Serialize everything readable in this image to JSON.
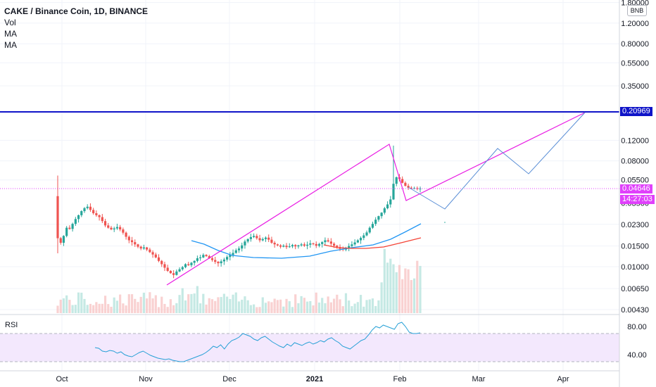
{
  "header": {
    "symbol_title": "CAKE / Binance Coin, 1D, BINANCE",
    "indicators": [
      "Vol",
      "MA",
      "MA"
    ]
  },
  "price_scale": {
    "unit": "BNB",
    "ticks": [
      "1.80000",
      "1.20000",
      "0.80000",
      "0.55000",
      "0.35000",
      "0.12000",
      "0.08000",
      "0.05500",
      "0.02300",
      "0.01500",
      "0.01000",
      "0.00650",
      "0.00430"
    ],
    "hidden_tick_partial": "0.03500"
  },
  "horizontal_line": {
    "value_label": "0.20969",
    "color": "#0f14c8"
  },
  "current_price": {
    "label": "0.04646",
    "countdown": "14:27:03",
    "color": "#e040fb"
  },
  "rsi": {
    "label": "RSI",
    "ticks": [
      "80.00",
      "40.00"
    ]
  },
  "time_axis": {
    "labels": [
      "Oct",
      "Nov",
      "Dec",
      "2021",
      "Feb",
      "Mar",
      "Apr"
    ]
  },
  "colors": {
    "up": "#26a69a",
    "down": "#ef5350",
    "ma_fast": "#2196f3",
    "ma_slow": "#f44336",
    "drawing": "#e91ee3",
    "projection": "#5b8fd6",
    "rsi_line": "#26a0d6",
    "rsi_band": "#f3e8fd"
  },
  "chart_data": {
    "type": "candlestick",
    "log_scale": true,
    "x_start": "2020-09-29",
    "candles_approx_closes": [
      0.0175,
      0.016,
      0.0183,
      0.0215,
      0.021,
      0.0232,
      0.0255,
      0.0275,
      0.0298,
      0.0316,
      0.0325,
      0.0305,
      0.0286,
      0.0275,
      0.0265,
      0.0245,
      0.0225,
      0.0215,
      0.0208,
      0.0212,
      0.0218,
      0.0208,
      0.0195,
      0.018,
      0.0168,
      0.0162,
      0.0155,
      0.0148,
      0.0143,
      0.0146,
      0.014,
      0.0133,
      0.0127,
      0.012,
      0.0112,
      0.0105,
      0.0098,
      0.0092,
      0.0088,
      0.0085,
      0.0091,
      0.0095,
      0.0099,
      0.0105,
      0.0103,
      0.0108,
      0.0112,
      0.0118,
      0.012,
      0.0126,
      0.0123,
      0.0118,
      0.0114,
      0.011,
      0.0107,
      0.0111,
      0.0115,
      0.0121,
      0.0126,
      0.0131,
      0.0138,
      0.0143,
      0.0152,
      0.0164,
      0.0172,
      0.0179,
      0.0183,
      0.0175,
      0.0168,
      0.0172,
      0.0177,
      0.017,
      0.016,
      0.0155,
      0.0152,
      0.0148,
      0.0151,
      0.0147,
      0.0149,
      0.0153,
      0.0149,
      0.0152,
      0.0155,
      0.0151,
      0.0154,
      0.0158,
      0.0156,
      0.0151,
      0.0156,
      0.0162,
      0.0168,
      0.0164,
      0.0157,
      0.0151,
      0.0147,
      0.0142,
      0.014,
      0.0145,
      0.015,
      0.0155,
      0.0161,
      0.0168,
      0.0176,
      0.0185,
      0.0196,
      0.0215,
      0.0232,
      0.0252,
      0.027,
      0.0289,
      0.0315,
      0.034,
      0.0375,
      0.051,
      0.058,
      0.056,
      0.052,
      0.049,
      0.0472,
      0.0465,
      0.0468,
      0.0461,
      0.0464
    ],
    "ma_fast_points": [
      [
        0.026,
        50
      ],
      [
        0.021,
        58
      ],
      [
        0.018,
        66
      ],
      [
        0.015,
        78
      ],
      [
        0.014,
        90
      ],
      [
        0.0142,
        100
      ],
      [
        0.015,
        108
      ],
      [
        0.0165,
        114
      ],
      [
        0.019,
        118
      ],
      [
        0.023,
        123
      ]
    ],
    "horizontal_level": 0.20969,
    "trendlines": [
      {
        "from": [
          "2020-11-09",
          0.0075
        ],
        "to": [
          "2021-01-24",
          0.11
        ]
      },
      {
        "from": [
          "2021-01-24",
          0.11
        ],
        "to": [
          "2021-02-03",
          0.037
        ]
      },
      {
        "from": [
          "2021-02-03",
          0.037
        ],
        "to": [
          "2021-04-08",
          0.20969
        ]
      }
    ],
    "projection_path": [
      [
        "2021-02-03",
        0.045
      ],
      [
        "2021-02-19",
        0.031
      ],
      [
        "2021-03-08",
        0.105
      ],
      [
        "2021-03-22",
        0.065
      ],
      [
        "2021-04-08",
        0.20969
      ]
    ],
    "rsi_range": [
      30,
      95
    ]
  }
}
